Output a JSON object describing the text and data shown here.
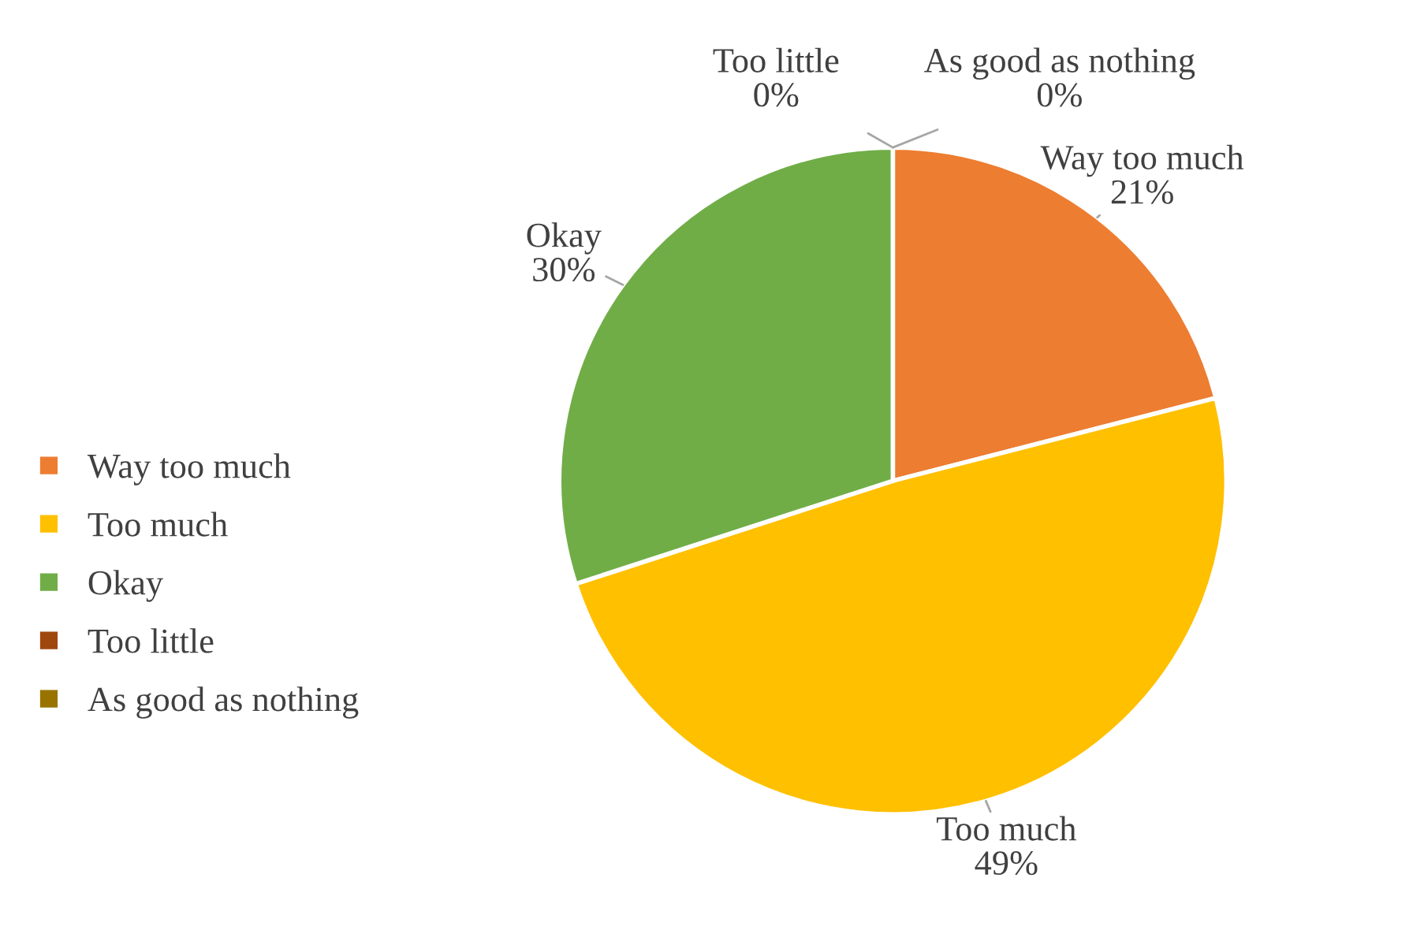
{
  "chart_data": {
    "type": "pie",
    "categories": [
      "Way too much",
      "Too much",
      "Okay",
      "Too little",
      "As good as nothing"
    ],
    "values": [
      21,
      49,
      30,
      0,
      0
    ],
    "colors": [
      "#ed7d31",
      "#ffc000",
      "#70ad47",
      "#9e480e",
      "#997300"
    ],
    "value_labels": [
      "21%",
      "49%",
      "30%",
      "0%",
      "0%"
    ],
    "legend": "left"
  }
}
